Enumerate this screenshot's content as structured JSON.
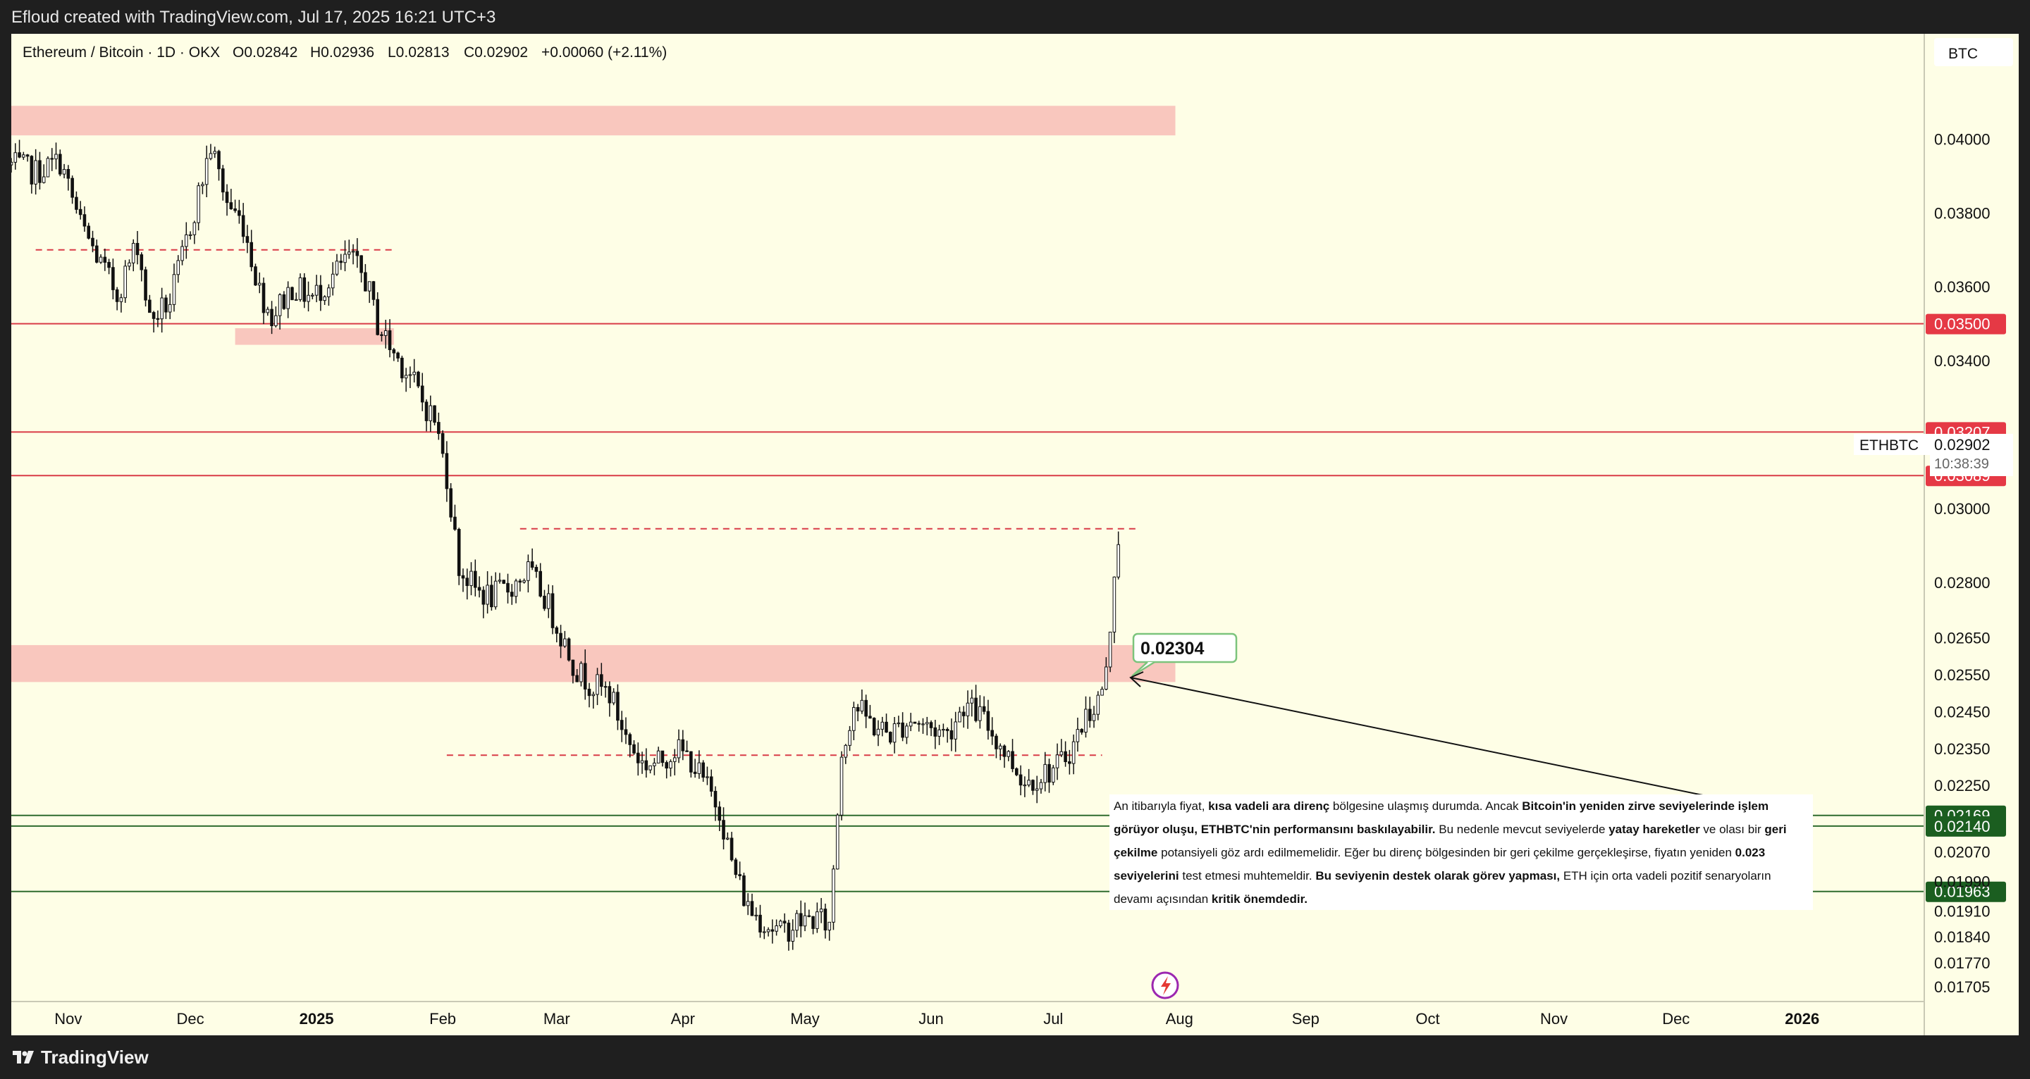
{
  "header": {
    "attribution": "Efloud created with TradingView.com, Jul 17, 2025 16:21 UTC+3"
  },
  "footer": {
    "brand": "TradingView"
  },
  "legend": {
    "symbol": "Ethereum / Bitcoin · 1D · OKX",
    "open": "O0.02842",
    "high": "H0.02936",
    "low": "L0.02813",
    "close": "C0.02902",
    "change": "+0.00060 (+2.11%)"
  },
  "currency_badge": "BTC",
  "ticker_label": "ETHBTC",
  "last_price": "0.02902",
  "countdown": "10:38:39",
  "callout_price": "0.02304",
  "annotation": {
    "p1": "An itibarıyla fiyat, ",
    "b1": "kısa vadeli ara direnç",
    "p2": " bölgesine ulaşmış durumda. Ancak ",
    "b2": "Bitcoin'in yeniden zirve seviyelerinde işlem görüyor oluşu, ETHBTC'nin performansını baskılayabilir.",
    "p3": " Bu nedenle mevcut seviyelerde ",
    "b3": "yatay hareketler",
    "p4": " ve olası bir ",
    "b4": "geri çekilme",
    "p5": " potansiyeli göz ardı edilmemelidir. Eğer bu direnç bölgesinden bir geri çekilme gerçekleşirse, fiyatın yeniden ",
    "b5": "0.023 seviyelerini",
    "p6": " test etmesi muhtemeldir. ",
    "b6": "Bu seviyenin destek olarak görev yapması,",
    "p7": " ETH için orta vadeli pozitif senaryoların devamı açısından ",
    "b7": "kritik önemdedir."
  },
  "colors": {
    "background": "#fefee6",
    "candle": "#111111",
    "resistance_zone": "#f9c7be",
    "resistance_line": "#d93b47",
    "support_line": "#2e6b2e",
    "support_label": "#1b5e20",
    "callout_border": "#7cc47c",
    "event_icon": "#9c27b0"
  },
  "chart_data": {
    "type": "candlestick",
    "symbol": "ETHBTC",
    "exchange": "OKX",
    "interval": "1D",
    "ylim": [
      0.01665,
      0.04285
    ],
    "x_range": [
      "2024-10-18",
      "2026-01-31"
    ],
    "y_ticks": [
      "0.04000",
      "0.03800",
      "0.03600",
      "0.03400",
      "0.03000",
      "0.02800",
      "0.02650",
      "0.02550",
      "0.02450",
      "0.02350",
      "0.02250",
      "0.02070",
      "0.01990",
      "0.01910",
      "0.01840",
      "0.01770",
      "0.01705"
    ],
    "x_tick_labels": [
      {
        "date": "2024-11-01",
        "label": "Nov"
      },
      {
        "date": "2024-12-01",
        "label": "Dec"
      },
      {
        "date": "2025-01-01",
        "label": "2025",
        "bold": true
      },
      {
        "date": "2025-02-01",
        "label": "Feb"
      },
      {
        "date": "2025-03-01",
        "label": "Mar"
      },
      {
        "date": "2025-04-01",
        "label": "Apr"
      },
      {
        "date": "2025-05-01",
        "label": "May"
      },
      {
        "date": "2025-06-01",
        "label": "Jun"
      },
      {
        "date": "2025-07-01",
        "label": "Jul"
      },
      {
        "date": "2025-08-01",
        "label": "Aug"
      },
      {
        "date": "2025-09-01",
        "label": "Sep"
      },
      {
        "date": "2025-10-01",
        "label": "Oct"
      },
      {
        "date": "2025-11-01",
        "label": "Nov"
      },
      {
        "date": "2025-12-01",
        "label": "Dec"
      },
      {
        "date": "2026-01-01",
        "label": "2026",
        "bold": true
      }
    ],
    "close_path": [
      [
        "2024-10-18",
        0.0393
      ],
      [
        "2024-10-24",
        0.0391
      ],
      [
        "2024-10-30",
        0.0394
      ],
      [
        "2024-11-04",
        0.0377
      ],
      [
        "2024-11-09",
        0.0366
      ],
      [
        "2024-11-13",
        0.0358
      ],
      [
        "2024-11-18",
        0.0372
      ],
      [
        "2024-11-21",
        0.0351
      ],
      [
        "2024-11-26",
        0.0356
      ],
      [
        "2024-11-29",
        0.0368
      ],
      [
        "2024-12-03",
        0.0385
      ],
      [
        "2024-12-06",
        0.0398
      ],
      [
        "2024-12-10",
        0.0383
      ],
      [
        "2024-12-14",
        0.0377
      ],
      [
        "2024-12-18",
        0.0359
      ],
      [
        "2024-12-21",
        0.0352
      ],
      [
        "2024-12-26",
        0.036
      ],
      [
        "2024-12-31",
        0.0357
      ],
      [
        "2025-01-05",
        0.0363
      ],
      [
        "2025-01-09",
        0.0368
      ],
      [
        "2025-01-13",
        0.0362
      ],
      [
        "2025-01-16",
        0.035
      ],
      [
        "2025-01-20",
        0.0342
      ],
      [
        "2025-01-24",
        0.0336
      ],
      [
        "2025-01-27",
        0.0329
      ],
      [
        "2025-01-30",
        0.0324
      ],
      [
        "2025-02-02",
        0.0309
      ],
      [
        "2025-02-05",
        0.0284
      ],
      [
        "2025-02-09",
        0.0278
      ],
      [
        "2025-02-13",
        0.0276
      ],
      [
        "2025-02-18",
        0.0279
      ],
      [
        "2025-02-22",
        0.0283
      ],
      [
        "2025-02-26",
        0.0276
      ],
      [
        "2025-03-02",
        0.0266
      ],
      [
        "2025-03-06",
        0.0256
      ],
      [
        "2025-03-10",
        0.0252
      ],
      [
        "2025-03-14",
        0.025
      ],
      [
        "2025-03-18",
        0.0238
      ],
      [
        "2025-03-22",
        0.0231
      ],
      [
        "2025-03-26",
        0.0231
      ],
      [
        "2025-03-30",
        0.0235
      ],
      [
        "2025-04-03",
        0.0232
      ],
      [
        "2025-04-06",
        0.0226
      ],
      [
        "2025-04-10",
        0.0219
      ],
      [
        "2025-04-13",
        0.0204
      ],
      [
        "2025-04-17",
        0.0192
      ],
      [
        "2025-04-21",
        0.0188
      ],
      [
        "2025-04-25",
        0.0185
      ],
      [
        "2025-04-29",
        0.0188
      ],
      [
        "2025-05-04",
        0.0189
      ],
      [
        "2025-05-07",
        0.0187
      ],
      [
        "2025-05-08",
        0.0203
      ],
      [
        "2025-05-10",
        0.0234
      ],
      [
        "2025-05-13",
        0.0247
      ],
      [
        "2025-05-18",
        0.0241
      ],
      [
        "2025-05-22",
        0.0239
      ],
      [
        "2025-05-27",
        0.0243
      ],
      [
        "2025-05-31",
        0.0241
      ],
      [
        "2025-06-05",
        0.0239
      ],
      [
        "2025-06-09",
        0.0247
      ],
      [
        "2025-06-13",
        0.0244
      ],
      [
        "2025-06-18",
        0.0236
      ],
      [
        "2025-06-21",
        0.0231
      ],
      [
        "2025-06-24",
        0.0226
      ],
      [
        "2025-06-28",
        0.0228
      ],
      [
        "2025-07-02",
        0.023
      ],
      [
        "2025-07-06",
        0.0236
      ],
      [
        "2025-07-09",
        0.0244
      ],
      [
        "2025-07-12",
        0.0248
      ],
      [
        "2025-07-14",
        0.0255
      ],
      [
        "2025-07-15",
        0.0268
      ],
      [
        "2025-07-16",
        0.0284
      ],
      [
        "2025-07-17",
        0.02902
      ]
    ],
    "zones": [
      {
        "from": 0.0401,
        "to": 0.0409,
        "start": "2024-10-18",
        "end": "2025-07-31",
        "kind": "resistance"
      },
      {
        "from": 0.03443,
        "to": 0.03488,
        "start": "2024-12-12",
        "end": "2025-01-20",
        "kind": "resistance"
      },
      {
        "from": 0.0253,
        "to": 0.0263,
        "start": "2024-10-18",
        "end": "2025-07-31",
        "kind": "resistance"
      }
    ],
    "levels": [
      {
        "price": 0.035,
        "label": "0.03500",
        "kind": "resistance"
      },
      {
        "price": 0.03207,
        "label": "0.03207",
        "kind": "resistance"
      },
      {
        "price": 0.03089,
        "label": "0.03089",
        "kind": "resistance"
      },
      {
        "price": 0.02169,
        "label": "0.02169",
        "kind": "support"
      },
      {
        "price": 0.0214,
        "label": "0.02140",
        "kind": "support"
      },
      {
        "price": 0.01963,
        "label": "0.01963",
        "kind": "support"
      }
    ],
    "dashed_levels": [
      {
        "price": 0.037,
        "start": "2024-10-24",
        "end": "2025-01-20"
      },
      {
        "price": 0.02945,
        "start": "2025-02-20",
        "end": "2025-07-22"
      },
      {
        "price": 0.02332,
        "start": "2025-02-02",
        "end": "2025-07-13"
      }
    ]
  }
}
